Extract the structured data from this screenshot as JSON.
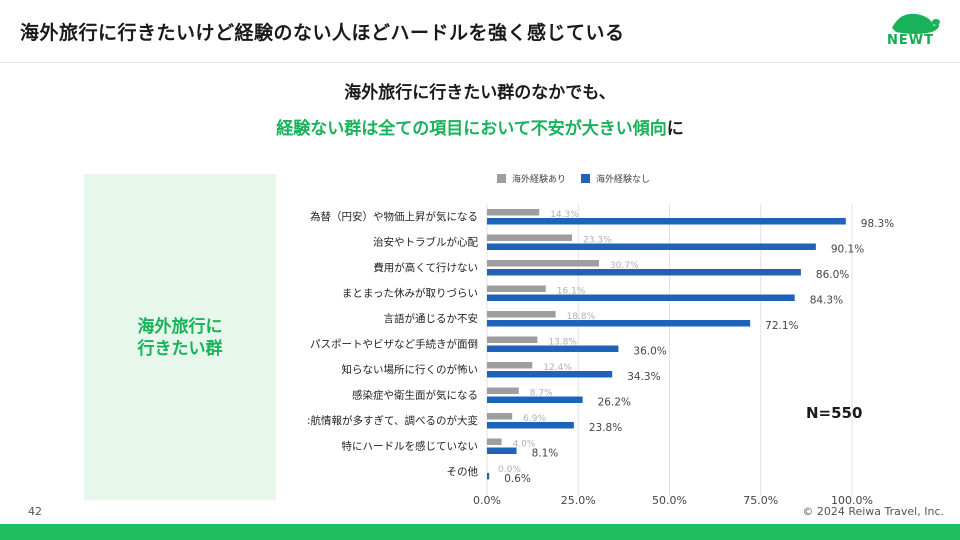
{
  "header": {
    "title": "海外旅行に行きたいけど経験のない人ほどハードルを強く感じている",
    "logo_text": "NEWT"
  },
  "subtitle": {
    "line1": "海外旅行に行きたい群のなかでも、",
    "line2_highlight": "経験ない群は全ての項目において不安が大きい傾向",
    "line2_suffix": "に"
  },
  "group_label": {
    "line1": "海外旅行に",
    "line2": "行きたい群"
  },
  "sample_size": "N=550",
  "footer": {
    "page_number": "42",
    "copyright": "© 2024 Reiwa Travel, Inc."
  },
  "colors": {
    "accent_green": "#17b25a",
    "series_experienced": "#9e9e9e",
    "series_inexperienced": "#1e63b8"
  },
  "chart_data": {
    "type": "bar",
    "orientation": "horizontal",
    "categories": [
      "為替（円安）や物価上昇が気になる",
      "治安やトラブルが心配",
      "費用が高くて行けない",
      "まとまった休みが取りづらい",
      "言語が通じるか不安",
      "パスポートやビザなど手続きが面倒",
      "知らない場所に行くのが怖い",
      "感染症や衛生面が気になる",
      ":航情報が多すぎて、調べるのが大変",
      "特にハードルを感じていない",
      "その他"
    ],
    "series": [
      {
        "name": "海外経験あり",
        "color": "#9e9e9e",
        "values": [
          14.3,
          23.3,
          30.7,
          16.1,
          18.8,
          13.8,
          12.4,
          8.7,
          6.9,
          4.0,
          0.0
        ],
        "labels": [
          "14.3%",
          "23.3%",
          "30.7%",
          "16.1%",
          "18.8%",
          "13.8%",
          "12.4%",
          "8.7%",
          "6.9%",
          "4.0%",
          "0.0%"
        ]
      },
      {
        "name": "海外経験なし",
        "color": "#1e63b8",
        "values": [
          98.3,
          90.1,
          86.0,
          84.3,
          72.1,
          36.0,
          34.3,
          26.2,
          23.8,
          8.1,
          0.6
        ],
        "labels": [
          "98.3%",
          "90.1%",
          "86.0%",
          "84.3%",
          "72.1%",
          "36.0%",
          "34.3%",
          "26.2%",
          "23.8%",
          "8.1%",
          "0.6%"
        ]
      }
    ],
    "xlim": [
      0,
      100
    ],
    "x_ticks": [
      0,
      25,
      50,
      75,
      100
    ],
    "x_tick_labels": [
      "0.0%",
      "25.0%",
      "50.0%",
      "75.0%",
      "100.0%"
    ],
    "grid": true,
    "legend_position": "top"
  }
}
